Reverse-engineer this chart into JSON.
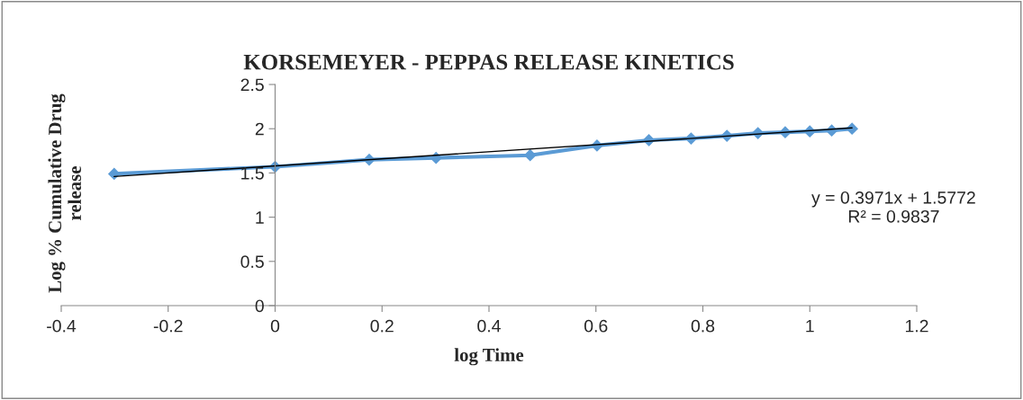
{
  "chart_data": {
    "type": "line",
    "title": "KORSEMEYER - PEPPAS RELEASE KINETICS",
    "xlabel": "log Time",
    "ylabel": "Log % Cumulative Drug\nrelease",
    "series": [
      {
        "color": "#5b9bd5",
        "marker": "diamond",
        "x": [
          -0.301,
          0,
          0.176,
          0.301,
          0.477,
          0.602,
          0.699,
          0.778,
          0.845,
          0.903,
          0.954,
          1,
          1.041,
          1.079
        ],
        "values": [
          1.49,
          1.57,
          1.65,
          1.67,
          1.7,
          1.81,
          1.87,
          1.89,
          1.92,
          1.95,
          1.96,
          1.97,
          1.98,
          2.0
        ]
      },
      {
        "color": "#000000",
        "marker": "none",
        "x": [
          -0.301,
          1.079
        ],
        "values": [
          1.46,
          2.01
        ]
      }
    ],
    "annotations": [
      "y = 0.3971x + 1.5772\nR² = 0.9837"
    ],
    "xlim": [
      -0.4,
      1.2
    ],
    "xticks": [
      -0.4,
      -0.2,
      0,
      0.2,
      0.4,
      0.6,
      0.8,
      1,
      1.2
    ],
    "ylim": [
      0,
      2.5
    ],
    "yticks": [
      0,
      0.5,
      1,
      1.5,
      2,
      2.5
    ],
    "grid": false,
    "legend": false
  }
}
